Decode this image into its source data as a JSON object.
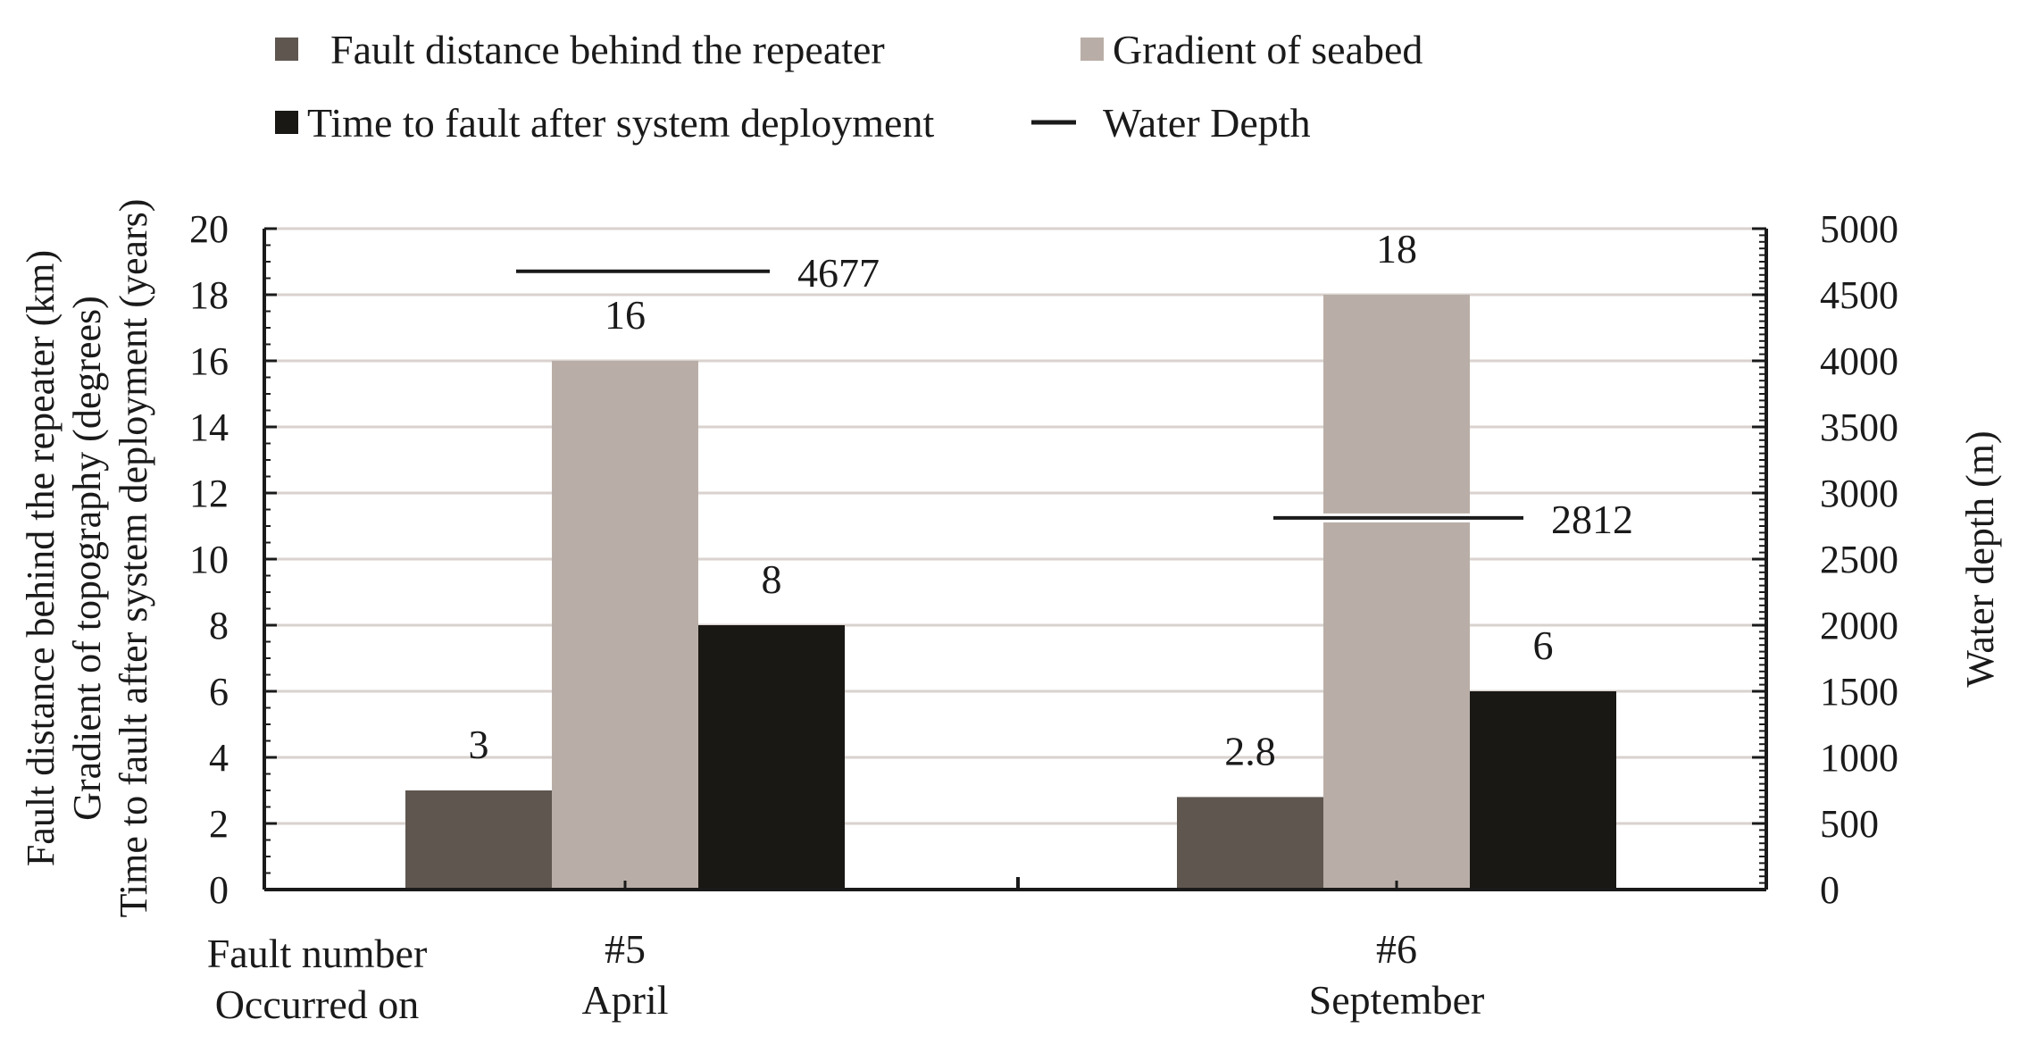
{
  "chart_data": {
    "type": "bar",
    "categories": [
      "#5",
      "#6"
    ],
    "category_sublabels": [
      "April",
      "September"
    ],
    "category_row_labels": [
      "Fault number",
      "Occurred on"
    ],
    "series": [
      {
        "name": "Fault distance behind the repeater",
        "values": [
          3,
          2.8
        ],
        "data_labels": [
          "3",
          "2.8"
        ],
        "color": "#5f5650",
        "axis": "left"
      },
      {
        "name": "Gradient of seabed",
        "values": [
          16,
          18
        ],
        "data_labels": [
          "16",
          "18"
        ],
        "color": "#b9aea7",
        "axis": "left"
      },
      {
        "name": "Time to fault after system deployment",
        "values": [
          8,
          6
        ],
        "data_labels": [
          "8",
          "6"
        ],
        "color": "#1a1815",
        "axis": "left"
      },
      {
        "name": "Water Depth",
        "type": "line-marker",
        "values": [
          4677,
          2812
        ],
        "data_labels": [
          "4677",
          "2812"
        ],
        "color": "#1a1a1a",
        "axis": "right"
      }
    ],
    "left_axis": {
      "labels": [
        "Fault distance behind the repeater (km)",
        "Gradient of topography (degrees)",
        "Time to fault after system deployment (years)"
      ],
      "ylim": [
        0,
        20
      ],
      "ticks": [
        "0",
        "2",
        "4",
        "6",
        "8",
        "10",
        "12",
        "14",
        "16",
        "18",
        "20"
      ]
    },
    "right_axis": {
      "label": "Water depth (m)",
      "ylim": [
        0,
        5000
      ],
      "ticks": [
        "0",
        "500",
        "1000",
        "1500",
        "2000",
        "2500",
        "3000",
        "3500",
        "4000",
        "4500",
        "5000"
      ]
    },
    "grid": true,
    "gridline_color": "#d9d2ce",
    "legend_placement": "top"
  }
}
